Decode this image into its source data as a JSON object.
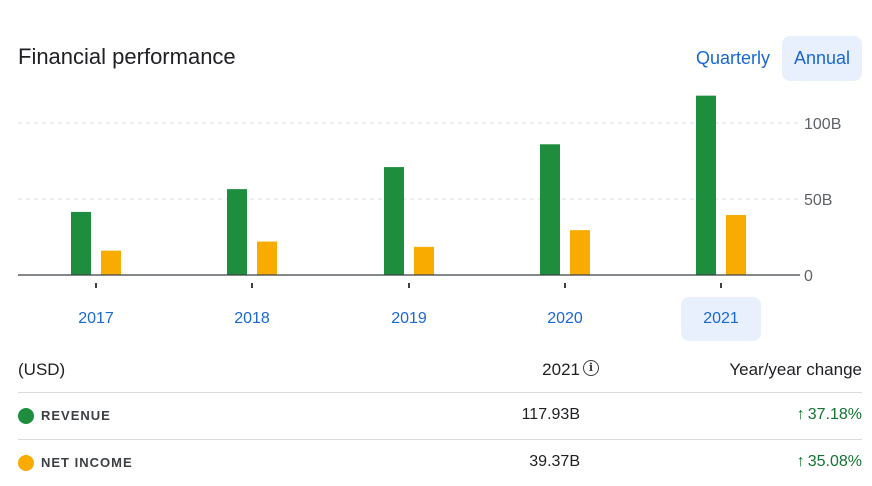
{
  "header": {
    "title": "Financial performance",
    "toggle_quarterly": "Quarterly",
    "toggle_annual": "Annual",
    "selected_period": "Annual"
  },
  "chart_data": {
    "type": "bar",
    "categories": [
      "2017",
      "2018",
      "2019",
      "2020",
      "2021"
    ],
    "selected_category": "2021",
    "series": [
      {
        "name": "REVENUE",
        "color": "#1e8e3e",
        "values": [
          41.5,
          56.5,
          71,
          86,
          118
        ]
      },
      {
        "name": "NET INCOME",
        "color": "#f9ab00",
        "values": [
          16,
          22,
          18.5,
          29.5,
          39.5
        ]
      }
    ],
    "ylim": [
      0,
      120
    ],
    "yticks": [
      0,
      50,
      100
    ],
    "ytick_labels": [
      "0",
      "50B",
      "100B"
    ],
    "grid": true,
    "axis_side": "right"
  },
  "table": {
    "col_currency": "(USD)",
    "col_year": "2021",
    "col_change": "Year/year change",
    "rows": [
      {
        "label": "REVENUE",
        "value": "117.93B",
        "change": "37.18%",
        "arrow": "↑",
        "color": "#1e8e3e"
      },
      {
        "label": "NET INCOME",
        "value": "39.37B",
        "change": "35.08%",
        "arrow": "↑",
        "color": "#f9ab00"
      }
    ]
  }
}
